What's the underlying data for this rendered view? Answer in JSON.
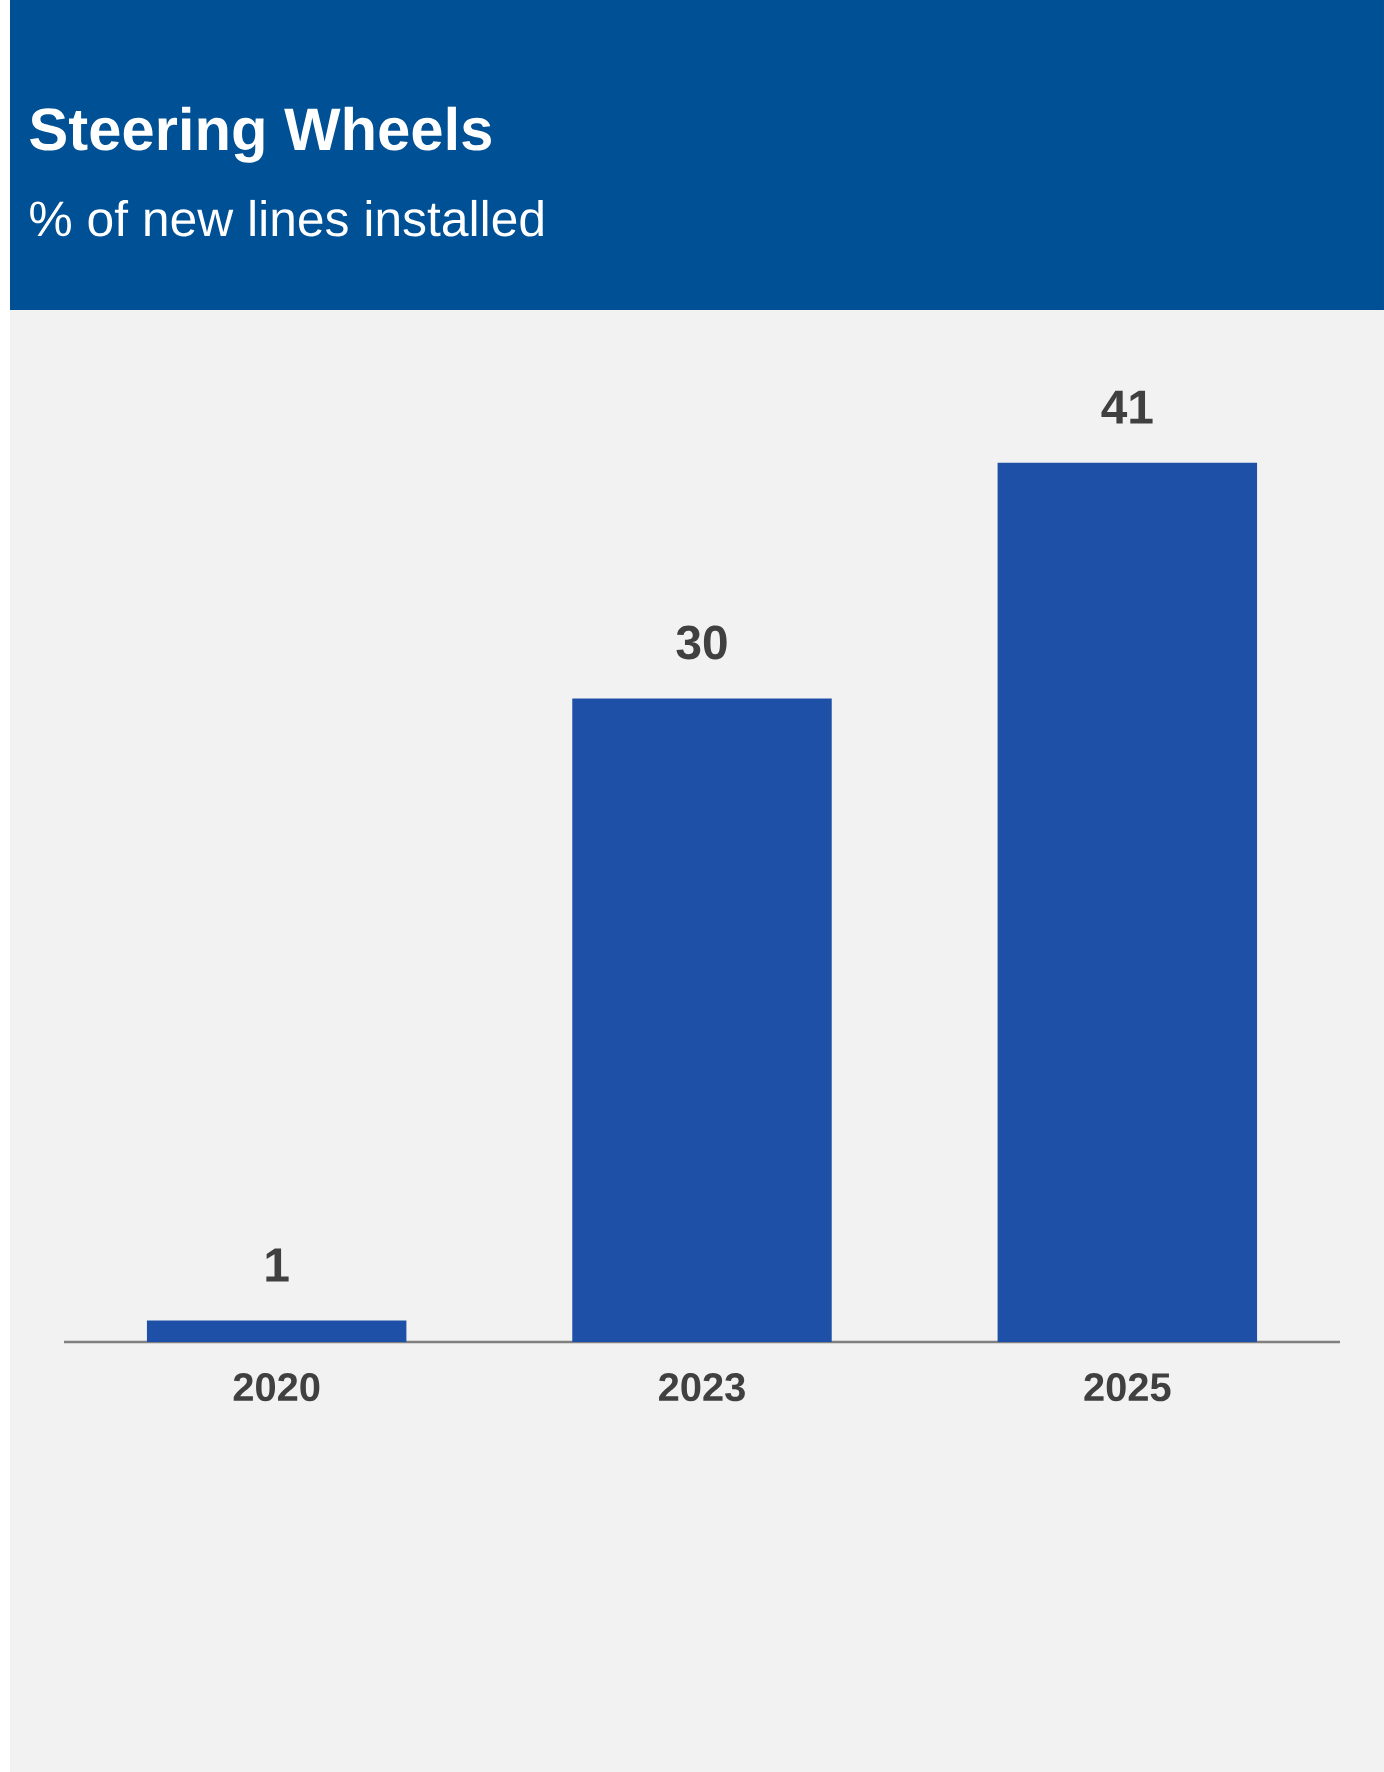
{
  "chart_data": {
    "type": "bar",
    "title": "Steering Wheels",
    "subtitle": "% of new lines installed",
    "categories": [
      "2020",
      "2023",
      "2025"
    ],
    "values": [
      1,
      30,
      41
    ],
    "color": "#1e50a8",
    "data_labels": true
  }
}
